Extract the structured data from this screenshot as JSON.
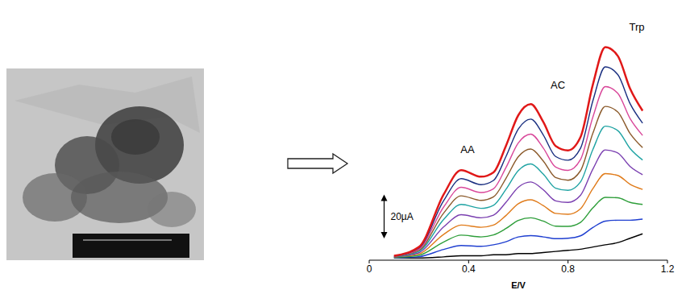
{
  "chart_data": {
    "type": "line",
    "x_label": "E/V",
    "x": [
      0.1,
      0.2,
      0.3,
      0.37,
      0.45,
      0.5,
      0.55,
      0.6,
      0.65,
      0.7,
      0.75,
      0.8,
      0.85,
      0.9,
      0.95,
      1.0,
      1.05,
      1.1
    ],
    "xlim": [
      0,
      1.2
    ],
    "xticks": [
      0,
      0.4,
      0.8,
      1.2
    ],
    "ylim": [
      0,
      110
    ],
    "tick_labels": "x",
    "grid": false,
    "series": [
      {
        "color": "#000000",
        "values": [
          1,
          1,
          1.5,
          2,
          2,
          2.5,
          2.5,
          3,
          3,
          3.5,
          4,
          4.5,
          5,
          6,
          7,
          8,
          10,
          12
        ]
      },
      {
        "color": "#1f3fd0",
        "values": [
          1.1,
          1.6,
          4.9,
          6.7,
          6.3,
          7,
          8.4,
          10.6,
          11.2,
          10.6,
          9.8,
          10,
          11.1,
          14.9,
          17.8,
          18.2,
          18.2,
          18.7
        ]
      },
      {
        "color": "#2e9e3a",
        "values": [
          1.2,
          2.2,
          8.3,
          11.4,
          10.6,
          11.5,
          14.4,
          18.1,
          19.3,
          17.8,
          15.5,
          15.4,
          17.2,
          23.8,
          28.6,
          28.4,
          26.3,
          25.4
        ]
      },
      {
        "color": "#e07b1a",
        "values": [
          1.4,
          2.8,
          11.8,
          16,
          15,
          16,
          20.3,
          25.7,
          27.5,
          24.9,
          21.3,
          20.9,
          23.4,
          32.6,
          39.4,
          38.6,
          34.5,
          32.2
        ]
      },
      {
        "color": "#7a3fb0",
        "values": [
          1.5,
          3.4,
          15.2,
          20.7,
          19.3,
          20.5,
          26.3,
          33.2,
          35.6,
          32.1,
          27,
          26.3,
          29.5,
          41.5,
          50.2,
          48.8,
          42.6,
          38.9
        ]
      },
      {
        "color": "#1fa3a3",
        "values": [
          1.6,
          4,
          18.6,
          25.4,
          23.6,
          25,
          32.2,
          40.8,
          43.8,
          39.2,
          32.8,
          31.8,
          35.6,
          50.4,
          61,
          59,
          50.8,
          45.6
        ]
      },
      {
        "color": "#8b5a2b",
        "values": [
          1.7,
          4.5,
          21.5,
          29.3,
          27.2,
          28.8,
          37.2,
          47.1,
          50.6,
          45.2,
          37.6,
          36.4,
          40.7,
          57.8,
          70,
          67.5,
          57.6,
          51.2
        ]
      },
      {
        "color": "#d9479a",
        "values": [
          1.8,
          5,
          24.3,
          33.2,
          30.8,
          32.5,
          42.1,
          53.4,
          57.4,
          51.1,
          42.4,
          40.9,
          45.8,
          65.2,
          79,
          76,
          64.4,
          56.8
        ]
      },
      {
        "color": "#1a2f80",
        "values": [
          1.9,
          5.5,
          27.2,
          37.1,
          34.4,
          36.3,
          47.1,
          59.7,
          64.2,
          57.1,
          47.2,
          45.5,
          50.9,
          72.6,
          88,
          84.5,
          71.2,
          62.4
        ]
      },
      {
        "color": "#e01818",
        "values": [
          2,
          6,
          30,
          41,
          38,
          40,
          52,
          66,
          71,
          63,
          52,
          50,
          56,
          80,
          97,
          93,
          78,
          68
        ]
      }
    ],
    "annotations": [
      {
        "text": "AA"
      },
      {
        "text": "AC"
      },
      {
        "text": "Trp"
      }
    ],
    "scale_bar": {
      "label": "20µA",
      "value": 20
    }
  }
}
